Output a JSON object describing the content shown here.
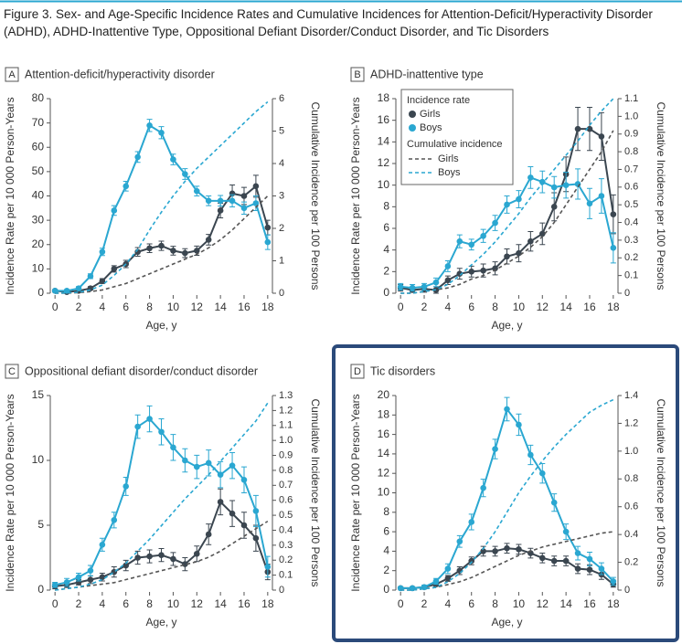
{
  "title": "Figure 3. Sex- and Age-Specific Incidence Rates and Cumulative Incidences for Attention-Deficit/Hyperactivity Disorder (ADHD), ADHD-Inattentive Type, Oppositional Defiant Disorder/Conduct Disorder, and Tic Disorders",
  "chart_data": [
    {
      "type": "line",
      "panel_label": "A",
      "title": "Attention-deficit/hyperactivity disorder",
      "x": [
        0,
        1,
        2,
        3,
        4,
        5,
        6,
        7,
        8,
        9,
        10,
        11,
        12,
        13,
        14,
        15,
        16,
        17,
        18
      ],
      "xlim": [
        -0.4,
        18.4
      ],
      "xticks": [
        0,
        2,
        4,
        6,
        8,
        10,
        12,
        14,
        16,
        18
      ],
      "xlabel": "Age, y",
      "ylabel": "Incidence Rate per 10 000 Person-Years",
      "y2label": "Cumulative Incidence per 100 Persons",
      "ylim": [
        0,
        80
      ],
      "yticks": [
        0,
        10,
        20,
        30,
        40,
        50,
        60,
        70,
        80
      ],
      "y2lim": [
        0,
        6
      ],
      "y2ticks": [
        0,
        1,
        2,
        3,
        4,
        5,
        6
      ],
      "series": [
        {
          "color": "#3b4650",
          "values": [
            1,
            0.5,
            1,
            2,
            5,
            10,
            12,
            17,
            18.5,
            19.5,
            17.5,
            16.5,
            17.5,
            22,
            34,
            41,
            40,
            44,
            27
          ],
          "errors": [
            0.5,
            0.3,
            0.5,
            0.7,
            1,
            1.3,
            1.5,
            1.8,
            1.8,
            1.9,
            1.8,
            1.8,
            1.9,
            2.2,
            3,
            3.5,
            3.5,
            4.5,
            3
          ]
        },
        {
          "color": "#2aa7d1",
          "values": [
            1,
            1,
            2,
            7,
            17,
            34,
            44,
            56,
            69,
            66,
            55,
            49,
            42,
            38,
            38,
            38,
            35,
            37,
            21
          ],
          "errors": [
            0.5,
            0.5,
            0.7,
            1,
            1.5,
            2,
            2,
            2.2,
            2.5,
            2.5,
            2.2,
            2.2,
            2,
            2,
            2.2,
            2.5,
            2.5,
            3,
            3
          ]
        },
        {
          "color": "#555555",
          "axis": "y2",
          "dashed": true,
          "values": [
            0,
            0,
            0.02,
            0.05,
            0.1,
            0.2,
            0.3,
            0.45,
            0.6,
            0.75,
            0.9,
            1.05,
            1.2,
            1.4,
            1.65,
            1.95,
            2.3,
            2.65,
            3.0
          ]
        },
        {
          "color": "#2aa7d1",
          "axis": "y2",
          "dashed": true,
          "values": [
            0,
            0.01,
            0.03,
            0.1,
            0.25,
            0.55,
            0.9,
            1.35,
            1.95,
            2.5,
            3.0,
            3.45,
            3.85,
            4.2,
            4.55,
            4.9,
            5.25,
            5.6,
            5.9
          ]
        }
      ]
    },
    {
      "type": "line",
      "panel_label": "B",
      "title": "ADHD-inattentive type",
      "x": [
        0,
        1,
        2,
        3,
        4,
        5,
        6,
        7,
        8,
        9,
        10,
        11,
        12,
        13,
        14,
        15,
        16,
        17,
        18
      ],
      "xlim": [
        -0.4,
        18.4
      ],
      "xticks": [
        0,
        2,
        4,
        6,
        8,
        10,
        12,
        14,
        16,
        18
      ],
      "xlabel": "Age, y",
      "ylabel": "Incidence Rate per 10 000 Person-Years",
      "y2label": "Cumulative Incidence per 100 Persons",
      "ylim": [
        0,
        18
      ],
      "yticks": [
        0,
        2,
        4,
        6,
        8,
        10,
        12,
        14,
        16,
        18
      ],
      "y2lim": [
        0,
        1.1
      ],
      "y2ticks": [
        0,
        0.1,
        0.2,
        0.3,
        0.4,
        0.5,
        0.6,
        0.7,
        0.8,
        0.9,
        {
          "value": 1,
          "label": "1.0"
        },
        1.1
      ],
      "legend": {
        "groups": [
          "Incidence rate",
          "Cumulative incidence"
        ]
      },
      "series": [
        {
          "name": "Girls",
          "color": "#3b4650",
          "values": [
            0.5,
            0.3,
            0.4,
            0.3,
            1.2,
            1.8,
            2,
            2.1,
            2.3,
            3.4,
            3.7,
            4.8,
            5.5,
            8,
            11,
            15.2,
            15.2,
            14.5,
            7.3
          ],
          "errors": [
            0.3,
            0.2,
            0.3,
            0.3,
            0.4,
            0.5,
            0.5,
            0.6,
            0.6,
            0.7,
            0.8,
            0.9,
            1,
            1.3,
            1.6,
            2,
            2,
            2.2,
            1.8
          ]
        },
        {
          "name": "Boys",
          "color": "#2aa7d1",
          "values": [
            0.6,
            0.5,
            0.6,
            1,
            2.5,
            4.8,
            4.5,
            5.3,
            6.5,
            8.2,
            8.7,
            10.7,
            10.3,
            9.8,
            10,
            10.1,
            8.3,
            9,
            4.2
          ],
          "errors": [
            0.3,
            0.3,
            0.3,
            0.4,
            0.5,
            0.6,
            0.5,
            0.6,
            0.7,
            0.8,
            0.8,
            1,
            1,
            1,
            1.2,
            1.4,
            1.4,
            1.6,
            1.4
          ]
        },
        {
          "name": "Girls",
          "color": "#555555",
          "axis": "y2",
          "dashed": true,
          "values": [
            0,
            0,
            0.01,
            0.02,
            0.03,
            0.05,
            0.08,
            0.1,
            0.13,
            0.17,
            0.21,
            0.26,
            0.32,
            0.4,
            0.5,
            0.6,
            0.7,
            0.8,
            0.92
          ]
        },
        {
          "name": "Boys",
          "color": "#2aa7d1",
          "axis": "y2",
          "dashed": true,
          "values": [
            0,
            0,
            0.01,
            0.02,
            0.05,
            0.1,
            0.16,
            0.22,
            0.29,
            0.37,
            0.45,
            0.54,
            0.62,
            0.7,
            0.78,
            0.86,
            0.95,
            1.03,
            1.1
          ]
        }
      ]
    },
    {
      "type": "line",
      "panel_label": "C",
      "title": "Oppositional defiant disorder/conduct disorder",
      "x": [
        0,
        1,
        2,
        3,
        4,
        5,
        6,
        7,
        8,
        9,
        10,
        11,
        12,
        13,
        14,
        15,
        16,
        17,
        18
      ],
      "xlim": [
        -0.4,
        18.4
      ],
      "xticks": [
        0,
        2,
        4,
        6,
        8,
        10,
        12,
        14,
        16,
        18
      ],
      "xlabel": "Age, y",
      "ylabel": "Incidence Rate per 10 000 Person-Years",
      "y2label": "Cumulative Incidence per 100 Persons",
      "ylim": [
        0,
        15
      ],
      "yticks": [
        0,
        5,
        10,
        15
      ],
      "y2lim": [
        0,
        1.3
      ],
      "y2ticks": [
        0,
        0.1,
        0.2,
        0.3,
        0.4,
        0.5,
        0.6,
        0.7,
        0.8,
        0.9,
        {
          "value": 1,
          "label": "1.0"
        },
        1.1,
        1.2,
        1.3
      ],
      "series": [
        {
          "color": "#3b4650",
          "values": [
            0.3,
            0.4,
            0.6,
            0.8,
            1,
            1.4,
            1.9,
            2.5,
            2.6,
            2.7,
            2.4,
            2,
            2.8,
            4.3,
            6.8,
            5.9,
            5,
            4,
            1.4
          ],
          "errors": [
            0.2,
            0.2,
            0.2,
            0.3,
            0.3,
            0.4,
            0.4,
            0.5,
            0.5,
            0.5,
            0.5,
            0.5,
            0.6,
            0.8,
            1,
            1,
            1,
            1,
            0.6
          ]
        },
        {
          "color": "#2aa7d1",
          "values": [
            0.4,
            0.6,
            1,
            1.5,
            3.5,
            5.4,
            8,
            12.6,
            13.2,
            12.2,
            11,
            10,
            9.5,
            9.8,
            8.9,
            9.6,
            8.5,
            6.1,
            1.8
          ],
          "errors": [
            0.2,
            0.3,
            0.3,
            0.4,
            0.5,
            0.6,
            0.7,
            0.9,
            1,
            1,
            1,
            0.9,
            0.9,
            1,
            1,
            1,
            1,
            1.2,
            0.8
          ]
        },
        {
          "color": "#555555",
          "axis": "y2",
          "dashed": true,
          "values": [
            0,
            0.01,
            0.02,
            0.03,
            0.04,
            0.05,
            0.07,
            0.09,
            0.11,
            0.13,
            0.15,
            0.17,
            0.19,
            0.22,
            0.26,
            0.31,
            0.36,
            0.41,
            0.46
          ]
        },
        {
          "color": "#2aa7d1",
          "axis": "y2",
          "dashed": true,
          "values": [
            0,
            0.01,
            0.02,
            0.04,
            0.07,
            0.12,
            0.18,
            0.26,
            0.34,
            0.43,
            0.52,
            0.61,
            0.69,
            0.77,
            0.86,
            0.95,
            1.04,
            1.13,
            1.25
          ]
        }
      ]
    },
    {
      "type": "line",
      "panel_label": "D",
      "title": "Tic disorders",
      "x": [
        0,
        1,
        2,
        3,
        4,
        5,
        6,
        7,
        8,
        9,
        10,
        11,
        12,
        13,
        14,
        15,
        16,
        17,
        18
      ],
      "xlim": [
        -0.4,
        18.4
      ],
      "xticks": [
        0,
        2,
        4,
        6,
        8,
        10,
        12,
        14,
        16,
        18
      ],
      "xlabel": "Age, y",
      "ylabel": "Incidence Rate per 10 000 Person-Years",
      "y2label": "Cumulative Incidence per 100 Persons",
      "ylim": [
        0,
        20
      ],
      "yticks": [
        0,
        2,
        4,
        6,
        8,
        10,
        12,
        14,
        16,
        18,
        20
      ],
      "y2lim": [
        0,
        1.4
      ],
      "y2ticks": [
        0,
        0.2,
        0.4,
        0.6,
        0.8,
        {
          "value": 1,
          "label": "1.0"
        },
        1.2,
        1.4
      ],
      "series": [
        {
          "color": "#3b4650",
          "values": [
            0.2,
            0.2,
            0.3,
            0.6,
            1.2,
            2,
            3,
            4,
            4,
            4.3,
            4.2,
            3.8,
            3.3,
            3,
            3,
            2.2,
            2.1,
            1.6,
            0.6
          ],
          "errors": [
            0.1,
            0.1,
            0.1,
            0.2,
            0.3,
            0.4,
            0.4,
            0.5,
            0.5,
            0.5,
            0.5,
            0.5,
            0.5,
            0.5,
            0.5,
            0.5,
            0.5,
            0.5,
            0.3
          ]
        },
        {
          "color": "#2aa7d1",
          "values": [
            0.2,
            0.2,
            0.3,
            0.9,
            2.2,
            5,
            7,
            10.5,
            14.5,
            18.6,
            17,
            13.9,
            12,
            9,
            6,
            3.8,
            3.2,
            2.2,
            0.9
          ],
          "errors": [
            0.1,
            0.1,
            0.2,
            0.3,
            0.5,
            0.6,
            0.8,
            0.9,
            1,
            1.2,
            1.1,
            1,
            1,
            0.9,
            0.8,
            0.7,
            0.7,
            0.6,
            0.4
          ]
        },
        {
          "color": "#555555",
          "axis": "y2",
          "dashed": true,
          "values": [
            0,
            0,
            0.01,
            0.02,
            0.04,
            0.06,
            0.09,
            0.13,
            0.17,
            0.21,
            0.25,
            0.28,
            0.31,
            0.33,
            0.35,
            0.37,
            0.39,
            0.41,
            0.42
          ]
        },
        {
          "color": "#2aa7d1",
          "axis": "y2",
          "dashed": true,
          "values": [
            0,
            0,
            0.01,
            0.02,
            0.06,
            0.12,
            0.2,
            0.3,
            0.42,
            0.56,
            0.7,
            0.82,
            0.93,
            1.03,
            1.12,
            1.2,
            1.28,
            1.33,
            1.37
          ]
        }
      ]
    }
  ]
}
